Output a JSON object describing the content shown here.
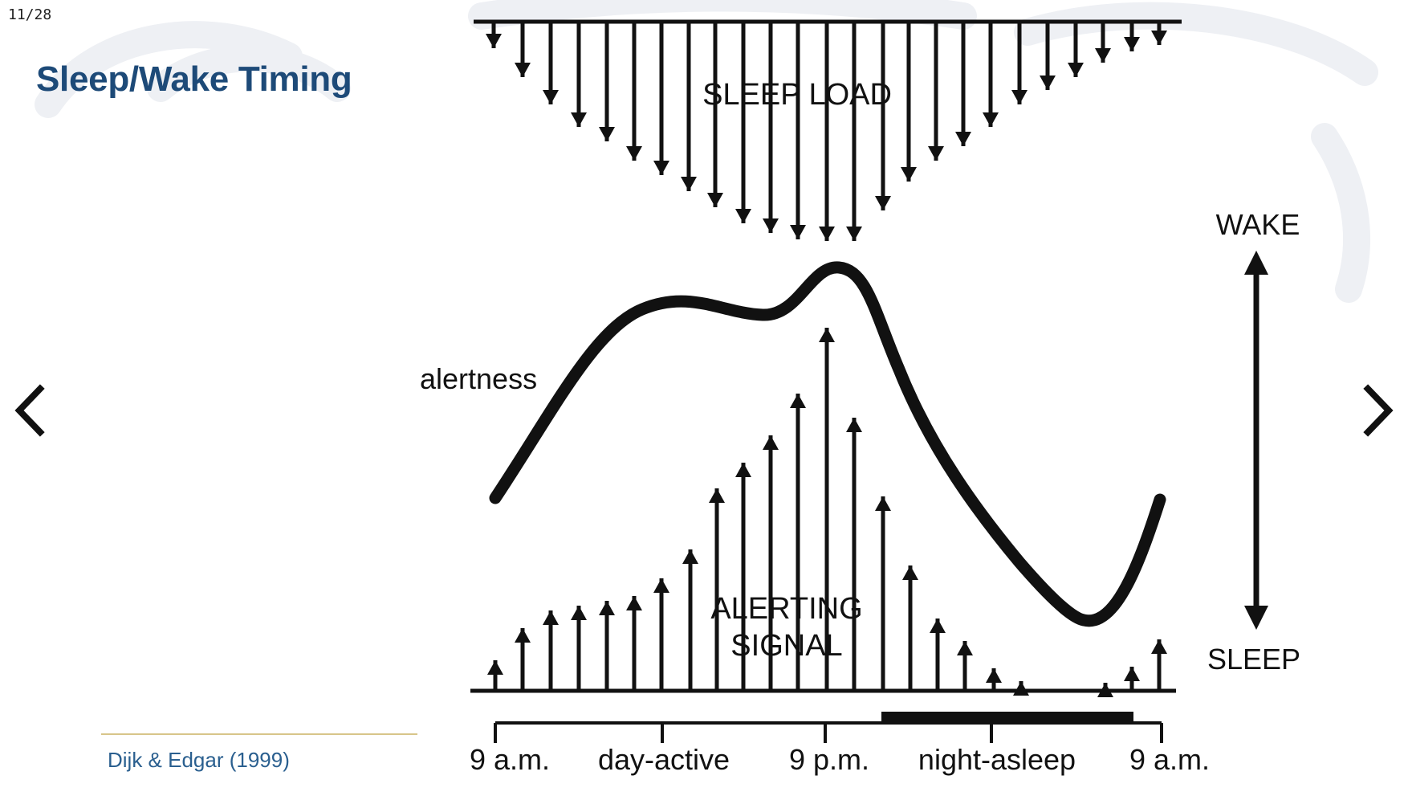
{
  "slide": {
    "counter": "11/28",
    "title": "Sleep/Wake Timing",
    "citation": "Dijk & Edgar (1999)"
  },
  "navigation": {
    "prev_icon": "chevron-left-icon",
    "next_icon": "chevron-right-icon"
  },
  "diagram": {
    "sleep_load_label": "SLEEP LOAD",
    "alerting_signal_label_line1": "ALERTING",
    "alerting_signal_label_line2": "SIGNAL",
    "alertness_label": "alertness",
    "wake_label": "WAKE",
    "sleep_label": "SLEEP",
    "timeline": [
      "9 a.m.",
      "day-active",
      "9 p.m.",
      "night-asleep",
      "9 a.m."
    ]
  },
  "colors": {
    "title": "#1d4a78",
    "citation": "#2a5f8f",
    "ink": "#111111"
  }
}
